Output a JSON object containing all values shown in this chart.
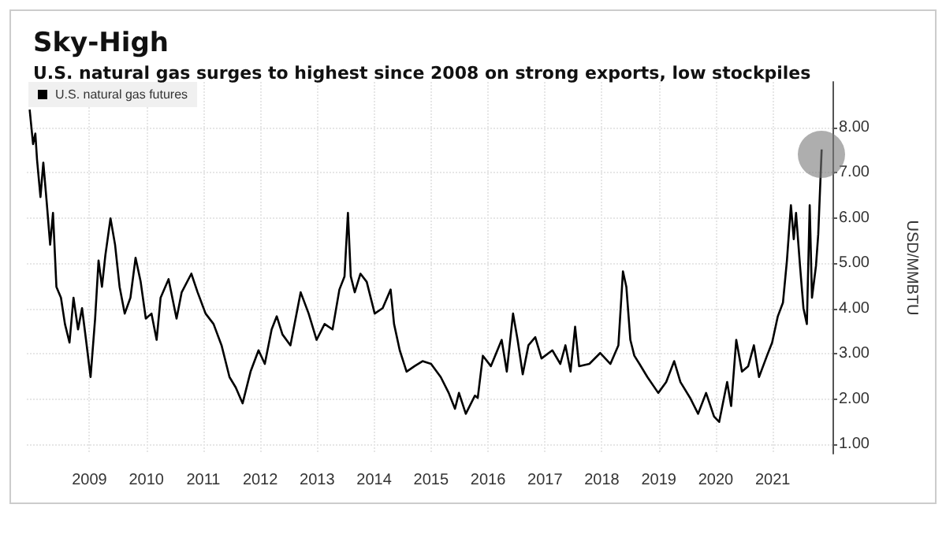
{
  "chart_data": {
    "type": "line",
    "title": "Sky-High",
    "subtitle": "U.S. natural gas surges to highest since 2008 on strong exports, low stockpiles",
    "ylabel": "USD/MMBTU",
    "series": [
      {
        "name": "U.S. natural gas futures",
        "color": "#000000",
        "x": [
          2008.45,
          2008.51,
          2008.55,
          2008.58,
          2008.64,
          2008.69,
          2008.75,
          2008.81,
          2008.86,
          2008.92,
          2009.0,
          2009.07,
          2009.15,
          2009.22,
          2009.3,
          2009.37,
          2009.44,
          2009.52,
          2009.6,
          2009.66,
          2009.72,
          2009.78,
          2009.87,
          2009.95,
          2010.03,
          2010.12,
          2010.22,
          2010.31,
          2010.4,
          2010.49,
          2010.59,
          2010.68,
          2010.75,
          2010.89,
          2011.03,
          2011.12,
          2011.29,
          2011.4,
          2011.54,
          2011.68,
          2011.82,
          2011.96,
          2012.07,
          2012.19,
          2012.33,
          2012.47,
          2012.58,
          2012.7,
          2012.79,
          2012.89,
          2013.03,
          2013.21,
          2013.35,
          2013.49,
          2013.63,
          2013.77,
          2013.89,
          2013.98,
          2014.04,
          2014.09,
          2014.16,
          2014.26,
          2014.37,
          2014.51,
          2014.65,
          2014.79,
          2014.85,
          2014.95,
          2015.07,
          2015.21,
          2015.35,
          2015.5,
          2015.67,
          2015.81,
          2015.92,
          2015.99,
          2016.11,
          2016.27,
          2016.32,
          2016.41,
          2016.55,
          2016.74,
          2016.83,
          2016.94,
          2017.02,
          2017.11,
          2017.21,
          2017.33,
          2017.44,
          2017.63,
          2017.77,
          2017.86,
          2017.95,
          2018.03,
          2018.1,
          2018.28,
          2018.47,
          2018.65,
          2018.79,
          2018.87,
          2018.93,
          2019.0,
          2019.07,
          2019.16,
          2019.3,
          2019.49,
          2019.63,
          2019.77,
          2019.88,
          2020.05,
          2020.19,
          2020.33,
          2020.47,
          2020.56,
          2020.7,
          2020.77,
          2020.86,
          2020.96,
          2021.07,
          2021.17,
          2021.26,
          2021.4,
          2021.49,
          2021.59,
          2021.68,
          2021.75,
          2021.82,
          2021.87,
          2021.91,
          2021.98,
          2022.04,
          2022.1,
          2022.15,
          2022.19,
          2022.26,
          2022.3,
          2022.36
        ],
        "values": [
          8.39,
          7.63,
          7.86,
          7.28,
          6.46,
          7.22,
          6.34,
          5.41,
          6.11,
          4.48,
          4.24,
          3.66,
          3.25,
          4.24,
          3.54,
          4.01,
          3.31,
          2.49,
          3.78,
          5.06,
          4.48,
          5.18,
          5.99,
          5.41,
          4.48,
          3.89,
          4.24,
          5.12,
          4.59,
          3.78,
          3.89,
          3.31,
          4.24,
          4.65,
          3.78,
          4.36,
          4.77,
          4.36,
          3.89,
          3.66,
          3.19,
          2.49,
          2.26,
          1.91,
          2.61,
          3.08,
          2.78,
          3.54,
          3.83,
          3.43,
          3.19,
          4.36,
          3.89,
          3.31,
          3.66,
          3.54,
          4.42,
          4.71,
          6.11,
          4.71,
          4.36,
          4.77,
          4.59,
          3.89,
          4.01,
          4.42,
          3.66,
          3.08,
          2.61,
          2.73,
          2.84,
          2.78,
          2.49,
          2.14,
          1.79,
          2.14,
          1.68,
          2.08,
          2.03,
          2.96,
          2.73,
          3.31,
          2.61,
          3.89,
          3.31,
          2.55,
          3.19,
          3.37,
          2.9,
          3.08,
          2.78,
          3.19,
          2.61,
          3.6,
          2.73,
          2.78,
          3.02,
          2.78,
          3.19,
          4.82,
          4.48,
          3.31,
          2.96,
          2.78,
          2.49,
          2.14,
          2.38,
          2.84,
          2.38,
          2.03,
          1.68,
          2.14,
          1.62,
          1.5,
          2.38,
          1.85,
          3.31,
          2.61,
          2.73,
          3.19,
          2.49,
          2.96,
          3.25,
          3.83,
          4.13,
          5.06,
          6.28,
          5.53,
          6.11,
          4.94,
          4.01,
          3.66,
          6.28,
          4.24,
          4.94,
          5.64,
          7.51
        ]
      }
    ],
    "xlim": [
      2008.4,
      2022.55
    ],
    "xticks": [
      {
        "value": 2009.5,
        "label": "2009"
      },
      {
        "value": 2010.5,
        "label": "2010"
      },
      {
        "value": 2011.5,
        "label": "2011"
      },
      {
        "value": 2012.5,
        "label": "2012"
      },
      {
        "value": 2013.5,
        "label": "2013"
      },
      {
        "value": 2014.5,
        "label": "2014"
      },
      {
        "value": 2015.5,
        "label": "2015"
      },
      {
        "value": 2016.5,
        "label": "2016"
      },
      {
        "value": 2017.5,
        "label": "2017"
      },
      {
        "value": 2018.5,
        "label": "2018"
      },
      {
        "value": 2019.5,
        "label": "2019"
      },
      {
        "value": 2020.5,
        "label": "2020"
      },
      {
        "value": 2021.5,
        "label": "2021"
      }
    ],
    "ylim": [
      0.8,
      9.0
    ],
    "yticks": [
      {
        "value": 1,
        "label": "1.00"
      },
      {
        "value": 2,
        "label": "2.00"
      },
      {
        "value": 3,
        "label": "3.00"
      },
      {
        "value": 4,
        "label": "4.00"
      },
      {
        "value": 5,
        "label": "5.00"
      },
      {
        "value": 6,
        "label": "6.00"
      },
      {
        "value": 7,
        "label": "7.00"
      },
      {
        "value": 8,
        "label": "8.00"
      }
    ],
    "grid": true,
    "legend": "top left",
    "marker": "none",
    "line_style": "solid"
  }
}
